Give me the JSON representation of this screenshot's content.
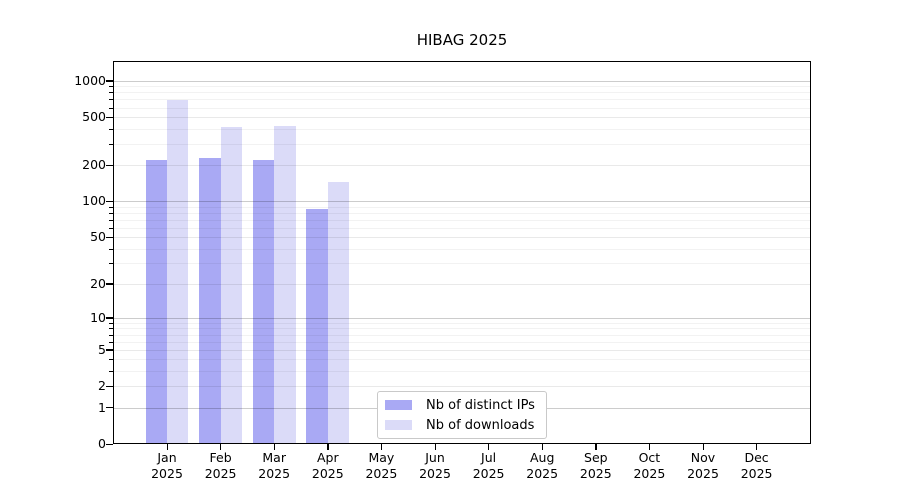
{
  "title": "HIBAG 2025",
  "chart_data": {
    "type": "bar",
    "title": "HIBAG 2025",
    "scale": "log1p",
    "grid": "horizontal; darker lines at powers of 10, faint minor log lines",
    "legend_position": "inside bottom-center",
    "categories": [
      "Jan",
      "Feb",
      "Mar",
      "Apr",
      "May",
      "Jun",
      "Jul",
      "Aug",
      "Sep",
      "Oct",
      "Nov",
      "Dec"
    ],
    "year": "2025",
    "series": [
      {
        "name": "Nb of distinct IPs",
        "color": "#a9a9f4",
        "values": [
          220,
          230,
          222,
          86,
          0,
          0,
          0,
          0,
          0,
          0,
          0,
          0
        ]
      },
      {
        "name": "Nb of downloads",
        "color": "#dbdbf8",
        "values": [
          695,
          414,
          422,
          145,
          0,
          0,
          0,
          0,
          0,
          0,
          0,
          0
        ]
      }
    ],
    "y_ticks": [
      0,
      1,
      2,
      5,
      10,
      20,
      50,
      100,
      200,
      500,
      1000
    ],
    "ylim": [
      0,
      1450
    ],
    "xlabel": "",
    "ylabel": ""
  },
  "legend": {
    "items": [
      {
        "label": "Nb of distinct IPs",
        "color": "#a9a9f4"
      },
      {
        "label": "Nb of downloads",
        "color": "#dbdbf8"
      }
    ]
  }
}
